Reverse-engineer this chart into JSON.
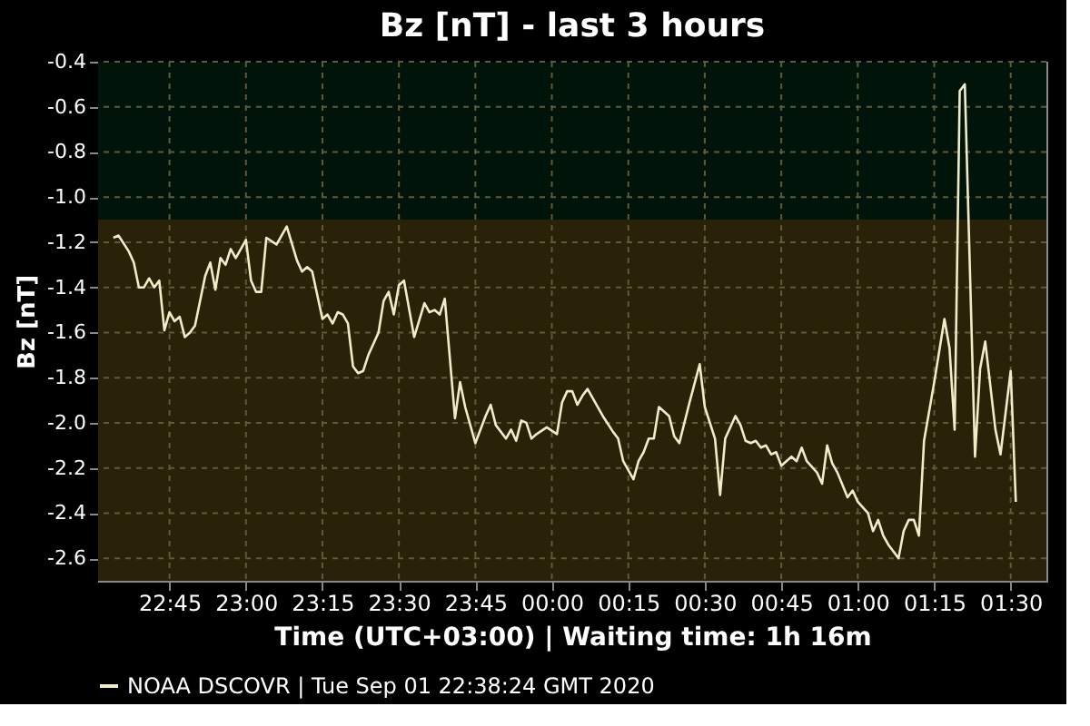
{
  "chart_data": {
    "type": "line",
    "title": "Bz [nT] - last 3 hours",
    "xlabel": "Time (UTC+03:00) | Waiting time: 1h 16m",
    "ylabel": "Bz [nT]",
    "xlim": [
      "2020-09-01T22:31",
      "2020-09-02T01:37"
    ],
    "xticks": [
      {
        "value": "2020-09-01T22:45",
        "label": "22:45"
      },
      {
        "value": "2020-09-01T23:00",
        "label": "23:00"
      },
      {
        "value": "2020-09-01T23:15",
        "label": "23:15"
      },
      {
        "value": "2020-09-01T23:30",
        "label": "23:30"
      },
      {
        "value": "2020-09-01T23:45",
        "label": "23:45"
      },
      {
        "value": "2020-09-02T00:00",
        "label": "00:00"
      },
      {
        "value": "2020-09-02T00:15",
        "label": "00:15"
      },
      {
        "value": "2020-09-02T00:30",
        "label": "00:30"
      },
      {
        "value": "2020-09-02T00:45",
        "label": "00:45"
      },
      {
        "value": "2020-09-02T01:00",
        "label": "01:00"
      },
      {
        "value": "2020-09-02T01:15",
        "label": "01:15"
      },
      {
        "value": "2020-09-02T01:30",
        "label": "01:30"
      }
    ],
    "ylim": [
      -2.7,
      -0.4
    ],
    "yticks": [
      {
        "value": -2.6,
        "label": "-2.6"
      },
      {
        "value": -2.4,
        "label": "-2.4"
      },
      {
        "value": -2.2,
        "label": "-2.2"
      },
      {
        "value": -2.0,
        "label": "-2.0"
      },
      {
        "value": -1.8,
        "label": "-1.8"
      },
      {
        "value": -1.6,
        "label": "-1.6"
      },
      {
        "value": -1.4,
        "label": "-1.4"
      },
      {
        "value": -1.2,
        "label": "-1.2"
      },
      {
        "value": -1.0,
        "label": "-1.0"
      },
      {
        "value": -0.8,
        "label": "-0.8"
      },
      {
        "value": -0.6,
        "label": "-0.6"
      },
      {
        "value": -0.4,
        "label": "-0.4"
      }
    ],
    "grid": true,
    "legend": "bottom",
    "line_style": "solid",
    "marker": "none",
    "bands": [
      {
        "axis": "y",
        "from": -1.1,
        "to": -0.4,
        "color": "#00140a"
      },
      {
        "axis": "y",
        "from": -2.7,
        "to": -1.1,
        "color": "#2a2208"
      }
    ],
    "series": [
      {
        "name": "NOAA DSCOVR | Tue Sep 01 22:38:24 GMT 2020",
        "color": "#f0ecc8",
        "x": [
          "2020-09-01T22:34",
          "2020-09-01T22:35",
          "2020-09-01T22:37",
          "2020-09-01T22:38",
          "2020-09-01T22:39",
          "2020-09-01T22:40",
          "2020-09-01T22:41",
          "2020-09-01T22:42",
          "2020-09-01T22:43",
          "2020-09-01T22:44",
          "2020-09-01T22:45",
          "2020-09-01T22:46",
          "2020-09-01T22:47",
          "2020-09-01T22:48",
          "2020-09-01T22:49",
          "2020-09-01T22:50",
          "2020-09-01T22:52",
          "2020-09-01T22:53",
          "2020-09-01T22:54",
          "2020-09-01T22:55",
          "2020-09-01T22:56",
          "2020-09-01T22:57",
          "2020-09-01T22:58",
          "2020-09-01T23:00",
          "2020-09-01T23:01",
          "2020-09-01T23:02",
          "2020-09-01T23:03",
          "2020-09-01T23:04",
          "2020-09-01T23:06",
          "2020-09-01T23:08",
          "2020-09-01T23:10",
          "2020-09-01T23:11",
          "2020-09-01T23:12",
          "2020-09-01T23:13",
          "2020-09-01T23:15",
          "2020-09-01T23:16",
          "2020-09-01T23:17",
          "2020-09-01T23:18",
          "2020-09-01T23:19",
          "2020-09-01T23:20",
          "2020-09-01T23:21",
          "2020-09-01T23:22",
          "2020-09-01T23:23",
          "2020-09-01T23:24",
          "2020-09-01T23:26",
          "2020-09-01T23:27",
          "2020-09-01T23:28",
          "2020-09-01T23:29",
          "2020-09-01T23:30",
          "2020-09-01T23:31",
          "2020-09-01T23:33",
          "2020-09-01T23:35",
          "2020-09-01T23:36",
          "2020-09-01T23:37",
          "2020-09-01T23:38",
          "2020-09-01T23:39",
          "2020-09-01T23:41",
          "2020-09-01T23:42",
          "2020-09-01T23:43",
          "2020-09-01T23:45",
          "2020-09-01T23:47",
          "2020-09-01T23:48",
          "2020-09-01T23:49",
          "2020-09-01T23:51",
          "2020-09-01T23:52",
          "2020-09-01T23:53",
          "2020-09-01T23:54",
          "2020-09-01T23:55",
          "2020-09-01T23:56",
          "2020-09-01T23:57",
          "2020-09-01T23:59",
          "2020-09-02T00:01",
          "2020-09-02T00:02",
          "2020-09-02T00:03",
          "2020-09-02T00:04",
          "2020-09-02T00:05",
          "2020-09-02T00:06",
          "2020-09-02T00:07",
          "2020-09-02T00:10",
          "2020-09-02T00:12",
          "2020-09-02T00:13",
          "2020-09-02T00:14",
          "2020-09-02T00:16",
          "2020-09-02T00:17",
          "2020-09-02T00:18",
          "2020-09-02T00:19",
          "2020-09-02T00:20",
          "2020-09-02T00:21",
          "2020-09-02T00:22",
          "2020-09-02T00:23",
          "2020-09-02T00:24",
          "2020-09-02T00:25",
          "2020-09-02T00:27",
          "2020-09-02T00:29",
          "2020-09-02T00:30",
          "2020-09-02T00:32",
          "2020-09-02T00:33",
          "2020-09-02T00:34",
          "2020-09-02T00:36",
          "2020-09-02T00:37",
          "2020-09-02T00:38",
          "2020-09-02T00:39",
          "2020-09-02T00:40",
          "2020-09-02T00:41",
          "2020-09-02T00:42",
          "2020-09-02T00:43",
          "2020-09-02T00:44",
          "2020-09-02T00:45",
          "2020-09-02T00:47",
          "2020-09-02T00:48",
          "2020-09-02T00:49",
          "2020-09-02T00:50",
          "2020-09-02T00:52",
          "2020-09-02T00:53",
          "2020-09-02T00:54",
          "2020-09-02T00:55",
          "2020-09-02T00:56",
          "2020-09-02T00:58",
          "2020-09-02T00:59",
          "2020-09-02T01:00",
          "2020-09-02T01:02",
          "2020-09-02T01:03",
          "2020-09-02T01:04",
          "2020-09-02T01:05",
          "2020-09-02T01:06",
          "2020-09-02T01:08",
          "2020-09-02T01:09",
          "2020-09-02T01:10",
          "2020-09-02T01:11",
          "2020-09-02T01:12",
          "2020-09-02T01:13",
          "2020-09-02T01:15",
          "2020-09-02T01:17",
          "2020-09-02T01:18",
          "2020-09-02T01:19",
          "2020-09-02T01:20",
          "2020-09-02T01:21",
          "2020-09-02T01:23",
          "2020-09-02T01:24",
          "2020-09-02T01:25",
          "2020-09-02T01:27",
          "2020-09-02T01:28",
          "2020-09-02T01:30",
          "2020-09-02T01:31"
        ],
        "values": [
          -1.18,
          -1.17,
          -1.24,
          -1.29,
          -1.4,
          -1.4,
          -1.36,
          -1.4,
          -1.37,
          -1.59,
          -1.51,
          -1.55,
          -1.53,
          -1.62,
          -1.6,
          -1.57,
          -1.35,
          -1.29,
          -1.41,
          -1.27,
          -1.3,
          -1.23,
          -1.27,
          -1.19,
          -1.37,
          -1.42,
          -1.42,
          -1.18,
          -1.21,
          -1.13,
          -1.28,
          -1.33,
          -1.31,
          -1.33,
          -1.54,
          -1.52,
          -1.56,
          -1.51,
          -1.52,
          -1.56,
          -1.75,
          -1.78,
          -1.77,
          -1.7,
          -1.6,
          -1.46,
          -1.42,
          -1.52,
          -1.39,
          -1.37,
          -1.62,
          -1.47,
          -1.51,
          -1.5,
          -1.52,
          -1.45,
          -1.98,
          -1.82,
          -1.93,
          -2.09,
          -1.97,
          -1.92,
          -2.01,
          -2.07,
          -2.03,
          -2.08,
          -1.99,
          -2.0,
          -2.07,
          -2.05,
          -2.02,
          -2.05,
          -1.91,
          -1.86,
          -1.86,
          -1.92,
          -1.88,
          -1.85,
          -1.97,
          -2.04,
          -2.07,
          -2.17,
          -2.25,
          -2.17,
          -2.13,
          -2.07,
          -2.07,
          -1.93,
          -1.95,
          -1.97,
          -2.06,
          -2.09,
          -1.91,
          -1.74,
          -1.93,
          -2.07,
          -2.32,
          -2.07,
          -1.97,
          -2.01,
          -2.08,
          -2.09,
          -2.08,
          -2.11,
          -2.1,
          -2.14,
          -2.13,
          -2.19,
          -2.15,
          -2.17,
          -2.11,
          -2.17,
          -2.22,
          -2.27,
          -2.1,
          -2.18,
          -2.22,
          -2.33,
          -2.3,
          -2.35,
          -2.4,
          -2.48,
          -2.43,
          -2.5,
          -2.54,
          -2.6,
          -2.48,
          -2.43,
          -2.43,
          -2.5,
          -2.08,
          -1.82,
          -1.54,
          -1.67,
          -2.03,
          -0.53,
          -0.5,
          -2.15,
          -1.76,
          -1.64,
          -2.03,
          -2.14,
          -1.77,
          -2.35
        ]
      }
    ]
  }
}
